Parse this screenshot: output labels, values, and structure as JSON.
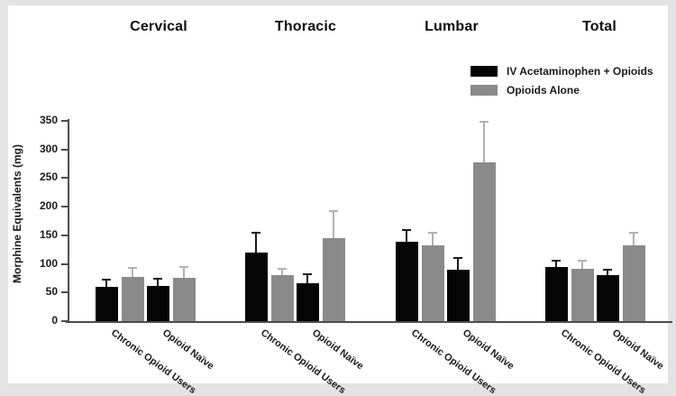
{
  "figure": {
    "background_color": "#e3e3e3",
    "card_color": "#ffffff"
  },
  "chart_data": {
    "type": "bar",
    "title": "",
    "ylabel": "Morphine Equivalents (mg)",
    "ylim": [
      0,
      350
    ],
    "yticks": [
      0,
      50,
      100,
      150,
      200,
      250,
      300,
      350
    ],
    "grid": false,
    "legend_position": "top-right",
    "error_bars": "upper whisker with cap (+SEM)",
    "group_labels": [
      "Cervical",
      "Thoracic",
      "Lumbar",
      "Total"
    ],
    "categories": [
      "Chronic Opioid Users",
      "Opioid Naïve"
    ],
    "series": [
      {
        "name": "IV Acetaminophen + Opioids",
        "color": "#050505",
        "error_color": "#1a1a1a",
        "values": {
          "Cervical": [
            60,
            62
          ],
          "Thoracic": [
            120,
            67
          ],
          "Lumbar": [
            138,
            90
          ],
          "Total": [
            95,
            80
          ]
        },
        "error_plus": {
          "Cervical": [
            12,
            12
          ],
          "Thoracic": [
            35,
            15
          ],
          "Lumbar": [
            22,
            20
          ],
          "Total": [
            10,
            10
          ]
        }
      },
      {
        "name": "Opioids Alone",
        "color": "#8a8a8a",
        "error_color": "#b2b2b2",
        "values": {
          "Cervical": [
            77,
            76
          ],
          "Thoracic": [
            80,
            145
          ],
          "Lumbar": [
            133,
            278
          ],
          "Total": [
            92,
            133
          ]
        },
        "error_plus": {
          "Cervical": [
            16,
            18
          ],
          "Thoracic": [
            11,
            47
          ],
          "Lumbar": [
            22,
            70
          ],
          "Total": [
            13,
            21
          ]
        }
      }
    ]
  }
}
